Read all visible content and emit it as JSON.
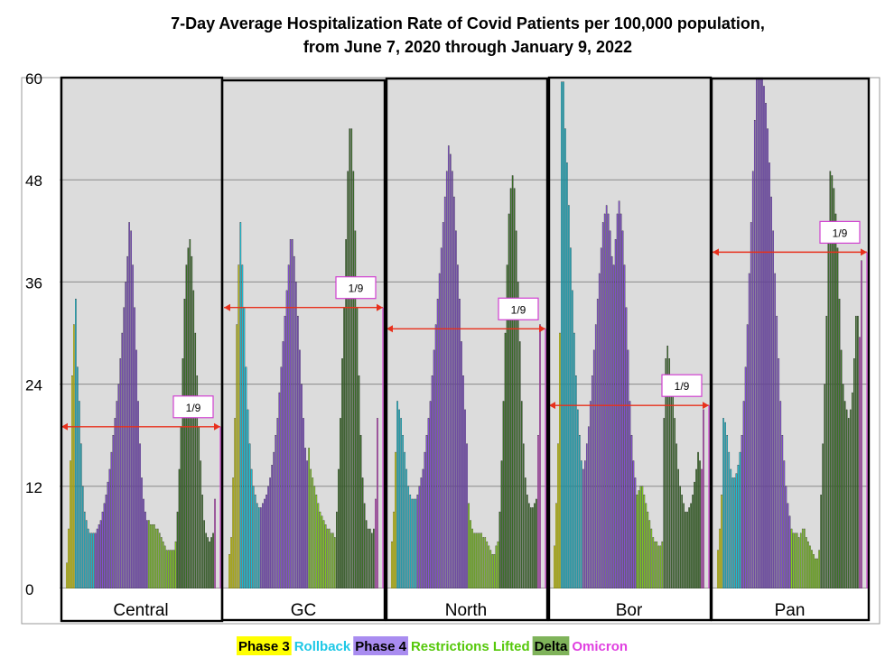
{
  "chart_data": {
    "type": "bar",
    "title_line1": "7-Day Average Hospitalization Rate of Covid Patients per 100,000 population,",
    "title_line2": "from June 7, 2020 through January 9, 2022",
    "ylim": [
      0,
      60
    ],
    "yticks": [
      0,
      12,
      24,
      36,
      48,
      60
    ],
    "grid": true,
    "phase_colors": {
      "Phase 3": "#f0f000",
      "Rollback": "#1ad7f0",
      "Phase 4": "#8f55e6",
      "Restrictions Lifted": "#8de21e",
      "Delta": "#3d7a27",
      "Omicron": "#e056e0"
    },
    "legend": [
      {
        "label": "Phase 3",
        "bg": "#ffff00",
        "fg": "#000000"
      },
      {
        "label": "Rollback",
        "bg": "#ffffff",
        "fg": "#1ec8e6"
      },
      {
        "label": "Phase 4",
        "bg": "#a98cf0",
        "fg": "#000000"
      },
      {
        "label": "Restrictions Lifted",
        "bg": "#ffffff",
        "fg": "#55c80a"
      },
      {
        "label": "Delta",
        "bg": "#7fb35a",
        "fg": "#000000"
      },
      {
        "label": "Omicron",
        "bg": "#ffffff",
        "fg": "#e040e0"
      }
    ],
    "panels": [
      {
        "name": "Central",
        "annotation": "1/9",
        "omicron_reference": 19,
        "series": [
          {
            "phase": "Phase 3",
            "values": [
              3,
              7,
              15,
              25,
              31
            ]
          },
          {
            "phase": "Rollback",
            "values": [
              34,
              26,
              22,
              17,
              12,
              9,
              8,
              7,
              6.5,
              6.5,
              6.5
            ]
          },
          {
            "phase": "Phase 4",
            "values": [
              6.5,
              7,
              7.5,
              8,
              9,
              10,
              11,
              12.5,
              14,
              16,
              18,
              20,
              22,
              24,
              27,
              30,
              33,
              36,
              39,
              43,
              42,
              38,
              33,
              28,
              22,
              17,
              13,
              10.5,
              9,
              8
            ]
          },
          {
            "phase": "Restrictions Lifted",
            "values": [
              8,
              7.5,
              7.5,
              7.5,
              7,
              7,
              6.5,
              6,
              5.5,
              5,
              4.5,
              4.5,
              4.5,
              4.5,
              4.5,
              5.5
            ]
          },
          {
            "phase": "Delta",
            "values": [
              9,
              14,
              19,
              27,
              34,
              38,
              40,
              41,
              39,
              35,
              30,
              25,
              19,
              15,
              11,
              8,
              6.5,
              6,
              5.5,
              6,
              6.5
            ]
          },
          {
            "phase": "Omicron",
            "values": [
              10.5
            ]
          }
        ]
      },
      {
        "name": "GC",
        "annotation": "1/9",
        "omicron_reference": 33,
        "series": [
          {
            "phase": "Phase 3",
            "values": [
              4,
              6,
              13,
              20,
              31,
              38
            ]
          },
          {
            "phase": "Rollback",
            "values": [
              43,
              38,
              33,
              26,
              21,
              17,
              14,
              12,
              11,
              10,
              9.5
            ]
          },
          {
            "phase": "Phase 4",
            "values": [
              9.5,
              10,
              10.5,
              11,
              12,
              13,
              14.5,
              16,
              18,
              20,
              23,
              26,
              29,
              32,
              35,
              38,
              41,
              41,
              39,
              36,
              32,
              28,
              24,
              20,
              16.5,
              15
            ]
          },
          {
            "phase": "Restrictions Lifted",
            "values": [
              16.5,
              14,
              13,
              12,
              11,
              10,
              9,
              8.5,
              8,
              7.5,
              7,
              7,
              6.5,
              6.5,
              6
            ]
          },
          {
            "phase": "Delta",
            "values": [
              9,
              14,
              20,
              27,
              33,
              41,
              49,
              54,
              54,
              49,
              42,
              33,
              25,
              18,
              13,
              10,
              8,
              7,
              7,
              6.5,
              7
            ]
          },
          {
            "phase": "Omicron",
            "values": [
              10.5,
              20
            ]
          }
        ]
      },
      {
        "name": "North",
        "annotation": "1/9",
        "omicron_reference": 30.5,
        "series": [
          {
            "phase": "Phase 3",
            "values": [
              5.5,
              9,
              16
            ]
          },
          {
            "phase": "Rollback",
            "values": [
              22,
              21,
              20,
              18,
              16,
              14,
              12,
              11,
              10.5,
              10.5,
              10.5
            ]
          },
          {
            "phase": "Phase 4",
            "values": [
              11,
              12,
              13,
              14,
              16,
              18,
              20,
              22,
              25,
              28,
              31,
              34,
              37,
              40,
              43,
              46,
              49,
              52,
              51,
              49,
              46,
              42,
              38,
              34,
              29,
              25,
              21,
              17
            ]
          },
          {
            "phase": "Restrictions Lifted",
            "values": [
              10,
              8,
              7,
              6.5,
              6.5,
              6.5,
              6.5,
              6.5,
              6,
              6,
              5.5,
              5,
              4.5,
              4,
              4,
              5,
              5.5
            ]
          },
          {
            "phase": "Delta",
            "values": [
              9,
              15,
              22,
              30,
              38,
              44,
              47,
              48.5,
              47,
              42,
              36,
              29,
              22,
              17,
              13,
              11,
              10,
              9.5,
              9.5,
              10,
              10.5
            ]
          },
          {
            "phase": "Omicron",
            "values": [
              18,
              31
            ]
          }
        ]
      },
      {
        "name": "Bor",
        "annotation": "1/9",
        "omicron_reference": 21.5,
        "series": [
          {
            "phase": "Phase 3",
            "values": [
              5,
              10,
              17,
              30
            ]
          },
          {
            "phase": "Rollback",
            "values": [
              59.5,
              59.5,
              54,
              50,
              45,
              40,
              35,
              30,
              25,
              21,
              18,
              15
            ]
          },
          {
            "phase": "Phase 4",
            "values": [
              14,
              15,
              17,
              19,
              22,
              25,
              28,
              31,
              34,
              37,
              40,
              43,
              44,
              45,
              44,
              42,
              39,
              38,
              41,
              44,
              45.5,
              44,
              42,
              38,
              33,
              28,
              22,
              18,
              15,
              13
            ]
          },
          {
            "phase": "Restrictions Lifted",
            "values": [
              11,
              11.5,
              12,
              12,
              11,
              10,
              9,
              8,
              7,
              6,
              5.5,
              5.5,
              5,
              5,
              5.5
            ]
          },
          {
            "phase": "Delta",
            "values": [
              20,
              27,
              28.5,
              27,
              25,
              23,
              20,
              17,
              14,
              12,
              11,
              10,
              9,
              9,
              9.5,
              10,
              11,
              12.5,
              14,
              16,
              15
            ]
          },
          {
            "phase": "Omicron",
            "values": [
              14,
              21
            ]
          }
        ]
      },
      {
        "name": "Pan",
        "annotation": "1/9",
        "omicron_reference": 39.5,
        "series": [
          {
            "phase": "Phase 3",
            "values": [
              4.5,
              7,
              11
            ]
          },
          {
            "phase": "Rollback",
            "values": [
              20,
              19.5,
              18,
              16,
              14,
              13,
              13,
              13.5,
              14.5,
              16
            ]
          },
          {
            "phase": "Phase 4",
            "values": [
              18,
              22,
              26,
              31,
              37,
              43,
              49,
              55,
              60,
              60,
              60,
              60,
              59,
              57,
              54,
              50,
              46,
              42,
              37,
              32,
              27,
              22,
              18,
              15,
              12,
              10,
              8.5
            ]
          },
          {
            "phase": "Restrictions Lifted",
            "values": [
              7,
              6.5,
              6.5,
              6.5,
              6,
              6.5,
              7,
              7,
              6,
              5.5,
              5,
              4.5,
              4,
              3.5,
              3.5,
              4.5
            ]
          },
          {
            "phase": "Delta",
            "values": [
              11,
              17,
              24,
              32,
              41,
              49,
              48.5,
              47,
              44,
              40,
              34,
              28,
              24,
              22,
              21,
              20,
              21,
              23,
              27,
              32,
              32
            ]
          },
          {
            "phase": "Omicron",
            "values": [
              29.5,
              38.5
            ]
          }
        ]
      }
    ]
  }
}
